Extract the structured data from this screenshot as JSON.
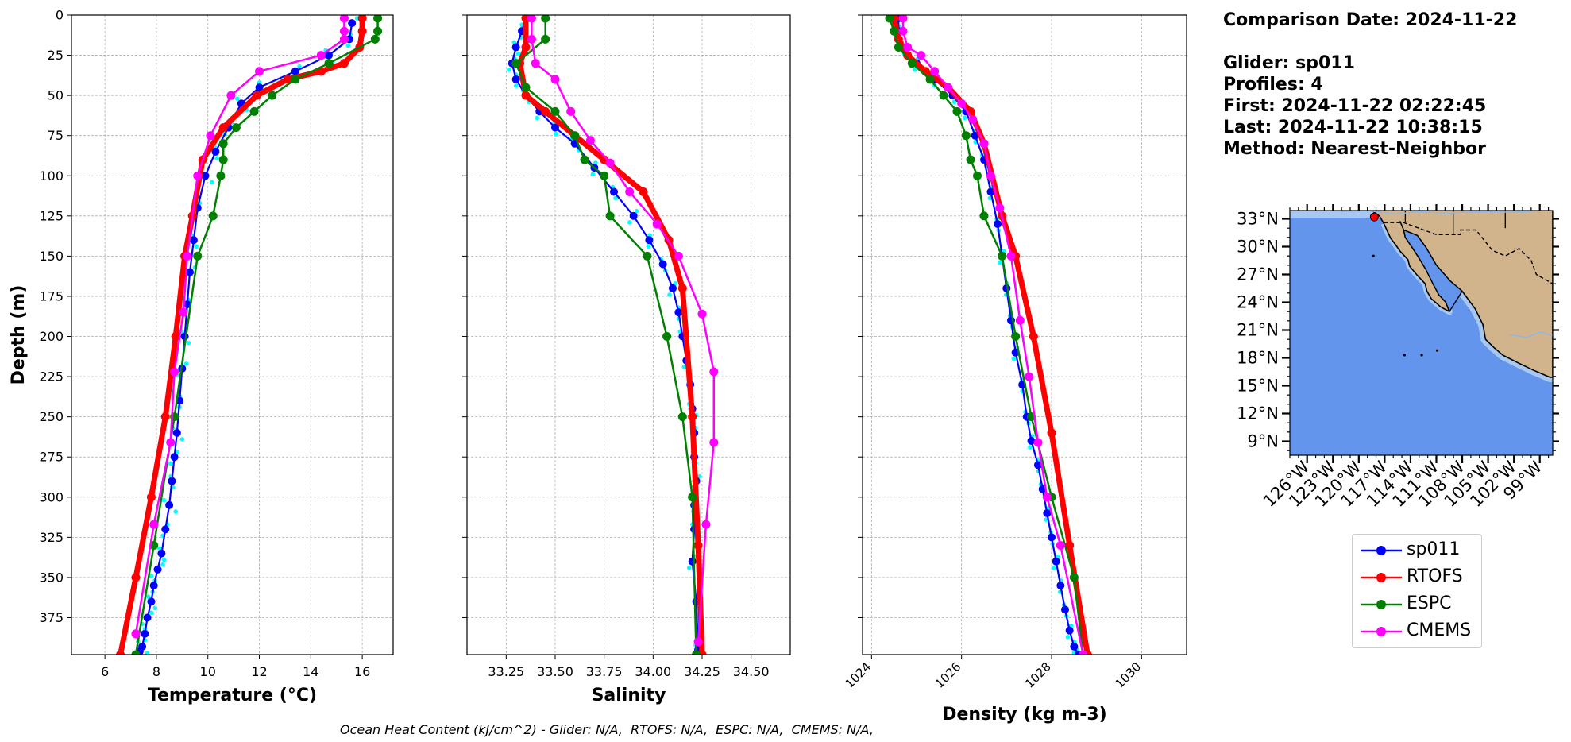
{
  "chart_data": [
    {
      "type": "line",
      "xlabel": "Temperature (°C)",
      "ylabel": "Depth (m)",
      "xlim": [
        4.7,
        17.2
      ],
      "ylim": [
        398,
        0
      ],
      "x_ticks": [
        6,
        8,
        10,
        12,
        14,
        16
      ],
      "y_ticks": [
        0,
        25,
        50,
        75,
        100,
        125,
        150,
        175,
        200,
        225,
        250,
        275,
        300,
        325,
        350,
        375
      ],
      "grid": true,
      "series": [
        {
          "name": "sp011",
          "color": "#0000ff",
          "x": [
            15.6,
            15.5,
            14.7,
            13.4,
            12.0,
            11.3,
            10.8,
            10.3,
            9.9,
            9.6,
            9.45,
            9.3,
            9.2,
            9.1,
            9.0,
            8.9,
            8.8,
            8.7,
            8.6,
            8.5,
            8.35,
            8.2,
            8.05,
            7.9,
            7.8,
            7.65,
            7.55,
            7.45,
            7.35
          ],
          "y": [
            5,
            15,
            25,
            35,
            45,
            55,
            70,
            85,
            100,
            120,
            140,
            160,
            180,
            200,
            220,
            240,
            260,
            275,
            290,
            305,
            320,
            335,
            345,
            355,
            365,
            375,
            385,
            393,
            396
          ]
        },
        {
          "name": "RTOFS",
          "color": "#ff0000",
          "x": [
            16.0,
            16.0,
            15.9,
            15.3,
            14.4,
            13.1,
            11.9,
            10.6,
            9.8,
            9.4,
            9.1,
            8.75,
            8.35,
            7.8,
            7.2,
            6.6
          ],
          "y": [
            2,
            10,
            20,
            30,
            35,
            40,
            50,
            70,
            90,
            125,
            150,
            200,
            250,
            300,
            350,
            398
          ]
        },
        {
          "name": "ESPC",
          "color": "#008000",
          "x": [
            16.6,
            16.6,
            16.5,
            14.7,
            13.4,
            12.5,
            11.8,
            11.1,
            10.6,
            10.6,
            10.5,
            10.2,
            9.6,
            8.7,
            7.9,
            7.2
          ],
          "y": [
            2,
            10,
            15,
            30,
            40,
            50,
            60,
            70,
            80,
            90,
            100,
            125,
            150,
            250,
            330,
            398
          ]
        },
        {
          "name": "CMEMS",
          "color": "#ff00ff",
          "x": [
            15.3,
            15.3,
            15.3,
            14.4,
            12.0,
            10.9,
            10.1,
            9.6,
            9.2,
            9.05,
            8.7,
            8.55,
            7.9,
            7.2
          ],
          "y": [
            2,
            10,
            15,
            25,
            35,
            50,
            75,
            100,
            150,
            185,
            222,
            266,
            317,
            385
          ]
        }
      ]
    },
    {
      "type": "line",
      "xlabel": "Salinity",
      "xlim": [
        33.05,
        34.7
      ],
      "ylim": [
        398,
        0
      ],
      "x_ticks": [
        33.25,
        33.5,
        33.75,
        34.0,
        34.25,
        34.5
      ],
      "x_tick_labels": [
        "33.25",
        "33.50",
        "33.75",
        "34.00",
        "34.25",
        "34.50"
      ],
      "grid": true,
      "series": [
        {
          "name": "sp011",
          "color": "#0000ff",
          "x": [
            33.35,
            33.33,
            33.3,
            33.28,
            33.3,
            33.35,
            33.42,
            33.5,
            33.6,
            33.7,
            33.8,
            33.9,
            33.98,
            34.05,
            34.1,
            34.13,
            34.15,
            34.17,
            34.19,
            34.2,
            34.21,
            34.21,
            34.22,
            34.21,
            34.21,
            34.2,
            34.22,
            34.23
          ],
          "y": [
            2,
            10,
            20,
            30,
            40,
            50,
            60,
            70,
            80,
            95,
            110,
            125,
            140,
            155,
            170,
            185,
            200,
            215,
            230,
            245,
            260,
            275,
            290,
            305,
            320,
            340,
            365,
            395
          ]
        },
        {
          "name": "RTOFS",
          "color": "#ff0000",
          "x": [
            33.35,
            33.35,
            33.32,
            33.35,
            33.45,
            33.6,
            33.75,
            33.95,
            34.08,
            34.15,
            34.2,
            34.23,
            34.25
          ],
          "y": [
            2,
            20,
            30,
            50,
            60,
            75,
            90,
            110,
            140,
            170,
            250,
            330,
            398
          ]
        },
        {
          "name": "ESPC",
          "color": "#008000",
          "x": [
            33.45,
            33.45,
            33.3,
            33.35,
            33.5,
            33.6,
            33.65,
            33.75,
            33.78,
            33.97,
            34.07,
            34.15,
            34.2,
            34.22
          ],
          "y": [
            2,
            15,
            30,
            45,
            60,
            75,
            90,
            100,
            125,
            150,
            200,
            250,
            300,
            398
          ]
        },
        {
          "name": "CMEMS",
          "color": "#ff00ff",
          "x": [
            33.38,
            33.38,
            33.4,
            33.5,
            33.58,
            33.68,
            33.78,
            33.88,
            34.02,
            34.13,
            34.25,
            34.31,
            34.31,
            34.27,
            34.23
          ],
          "y": [
            2,
            15,
            30,
            40,
            60,
            78,
            92,
            110,
            130,
            150,
            186,
            222,
            266,
            317,
            390
          ]
        }
      ]
    },
    {
      "type": "line",
      "xlabel": "Density (kg m-3)",
      "xlim": [
        1023.8,
        1031.0
      ],
      "ylim": [
        398,
        0
      ],
      "x_ticks": [
        1024,
        1026,
        1028,
        1030
      ],
      "grid": true,
      "series": [
        {
          "name": "sp011",
          "color": "#0000ff",
          "x": [
            1024.6,
            1024.6,
            1024.7,
            1025.0,
            1025.4,
            1025.8,
            1026.1,
            1026.3,
            1026.5,
            1026.65,
            1026.8,
            1026.9,
            1027.0,
            1027.1,
            1027.2,
            1027.35,
            1027.45,
            1027.55,
            1027.7,
            1027.8,
            1027.9,
            1028.0,
            1028.1,
            1028.2,
            1028.3,
            1028.4,
            1028.5,
            1028.6
          ],
          "y": [
            2,
            10,
            20,
            30,
            40,
            50,
            60,
            75,
            90,
            110,
            130,
            150,
            170,
            190,
            210,
            230,
            250,
            265,
            280,
            295,
            310,
            325,
            340,
            355,
            370,
            383,
            393,
            398
          ]
        },
        {
          "name": "RTOFS",
          "color": "#ff0000",
          "x": [
            1024.5,
            1024.6,
            1024.8,
            1025.2,
            1025.7,
            1026.2,
            1026.5,
            1026.9,
            1027.2,
            1027.6,
            1028.0,
            1028.4,
            1028.8
          ],
          "y": [
            2,
            15,
            25,
            35,
            45,
            60,
            80,
            125,
            150,
            200,
            260,
            330,
            398
          ]
        },
        {
          "name": "ESPC",
          "color": "#008000",
          "x": [
            1024.4,
            1024.5,
            1024.6,
            1024.9,
            1025.3,
            1025.6,
            1025.9,
            1026.1,
            1026.2,
            1026.35,
            1026.5,
            1026.9,
            1027.2,
            1027.55,
            1028.0,
            1028.5,
            1028.7
          ],
          "y": [
            2,
            10,
            20,
            30,
            40,
            50,
            60,
            75,
            90,
            100,
            125,
            150,
            200,
            250,
            300,
            350,
            398
          ]
        },
        {
          "name": "CMEMS",
          "color": "#ff00ff",
          "x": [
            1024.7,
            1024.7,
            1024.8,
            1025.1,
            1025.4,
            1025.7,
            1026.0,
            1026.25,
            1026.5,
            1026.65,
            1026.85,
            1027.1,
            1027.3,
            1027.5,
            1027.7,
            1027.9,
            1028.2,
            1028.7
          ],
          "y": [
            2,
            10,
            20,
            25,
            35,
            45,
            55,
            65,
            80,
            100,
            120,
            150,
            190,
            225,
            266,
            300,
            330,
            398
          ]
        }
      ]
    },
    {
      "type": "map",
      "lon_ticks": [
        "126°W",
        "123°W",
        "120°W",
        "117°W",
        "114°W",
        "111°W",
        "108°W",
        "105°W",
        "102°W",
        "99°W"
      ],
      "lat_ticks": [
        "33°N",
        "30°N",
        "27°N",
        "24°N",
        "21°N",
        "18°N",
        "15°N",
        "12°N",
        "9°N"
      ],
      "ocean_color": "#6495ed",
      "land_color": "#d2b48c",
      "marker": {
        "lon": -118.2,
        "lat": 33.2,
        "color": "#ff0000"
      }
    }
  ],
  "info": {
    "comparison": "Comparison Date: 2024-11-22",
    "glider": "Glider: sp011",
    "profiles": "Profiles: 4",
    "first": "First: 2024-11-22 02:22:45",
    "last": "Last: 2024-11-22 10:38:15",
    "method": "Method: Nearest-Neighbor"
  },
  "legend": [
    {
      "name": "sp011",
      "color": "#0000ff"
    },
    {
      "name": "RTOFS",
      "color": "#ff0000"
    },
    {
      "name": "ESPC",
      "color": "#008000"
    },
    {
      "name": "CMEMS",
      "color": "#ff00ff"
    }
  ],
  "footer": "Ocean Heat Content (kJ/cm^2) - Glider: N/A,  RTOFS: N/A,  ESPC: N/A,  CMEMS: N/A,"
}
